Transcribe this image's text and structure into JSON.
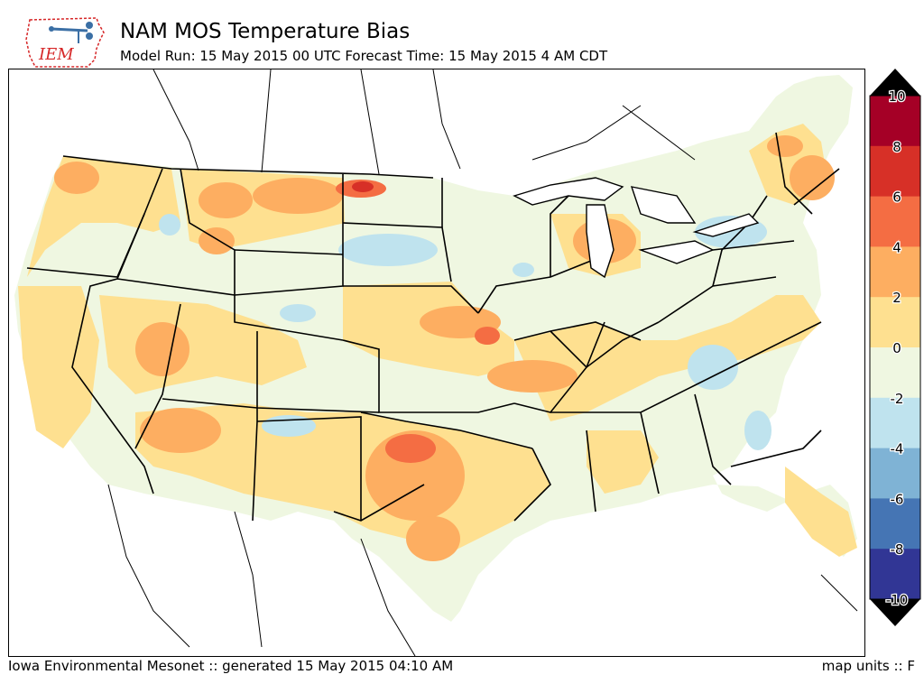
{
  "logo": {
    "text": "IEM",
    "colors": {
      "text": "#d62728",
      "icon": "#3b6fa5"
    }
  },
  "header": {
    "title": "NAM MOS Temperature Bias",
    "subtitle": "Model Run: 15 May 2015 00 UTC Forecast Time: 15 May 2015 4 AM CDT"
  },
  "colorbar": {
    "ticks": [
      "10",
      "8",
      "6",
      "4",
      "2",
      "0",
      "-2",
      "-4",
      "-6",
      "-8",
      "-10"
    ],
    "bins": [
      {
        "range": "8 to 10",
        "color": "#a50026"
      },
      {
        "range": "6 to 8",
        "color": "#d73027"
      },
      {
        "range": "4 to 6",
        "color": "#f46d43"
      },
      {
        "range": "2 to 4",
        "color": "#fdae61"
      },
      {
        "range": "0 to 2",
        "color": "#fee090"
      },
      {
        "range": "-2 to 0",
        "color": "#eff7e1"
      },
      {
        "range": "-4 to -2",
        "color": "#bfe3ee"
      },
      {
        "range": "-6 to -4",
        "color": "#7fb3d5"
      },
      {
        "range": "-8 to -6",
        "color": "#4575b4"
      },
      {
        "range": "-10 to -8",
        "color": "#313695"
      }
    ],
    "over_color": "#000000",
    "under_color": "#000000"
  },
  "footer": {
    "left": "Iowa Environmental Mesonet :: generated 15 May 2015 04:10 AM",
    "right": "map units :: F"
  }
}
